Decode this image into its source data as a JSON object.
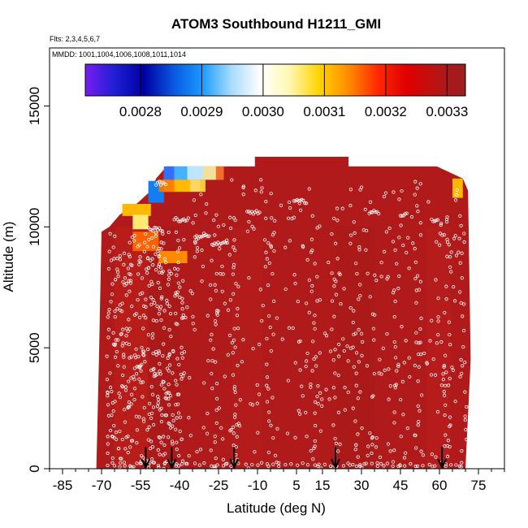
{
  "chart_data": {
    "type": "heatmap",
    "title": "ATOM3 Southbound H1211_GMI",
    "subtitle_lines": [
      "Flts: 2,3,4,5,6,7",
      "MMDD: 1001,1004,1006,1008,1011,1014"
    ],
    "xlabel": "Latitude (deg N)",
    "ylabel": "Altitude (m)",
    "xlim": [
      -90,
      85
    ],
    "ylim": [
      0,
      17400
    ],
    "x_ticks": [
      -85,
      -70,
      -55,
      -40,
      -25,
      -10,
      5,
      15,
      30,
      45,
      60,
      75
    ],
    "x_tick_labels": [
      "-85",
      "-70",
      "-55",
      "-40",
      "-25",
      "-10",
      "5",
      "15",
      "30",
      "45",
      "60",
      "75"
    ],
    "y_ticks": [
      0,
      5000,
      10000,
      15000
    ],
    "y_tick_labels": [
      "0",
      "5000",
      "10000",
      "15000"
    ],
    "colorbar": {
      "min": 0.00271,
      "max": 0.00333,
      "ticks": [
        0.0028,
        0.0029,
        0.003,
        0.0031,
        0.0032,
        0.0033
      ],
      "tick_labels": [
        "0.0028",
        "0.0029",
        "0.0030",
        "0.0031",
        "0.0032",
        "0.0033"
      ],
      "colors": [
        "#7a1cf0",
        "#1f1fd6",
        "#0000a0",
        "#0a55e0",
        "#1a9bff",
        "#a8dcff",
        "#ffffff",
        "#fff7b0",
        "#ffd400",
        "#ff8c00",
        "#ff2800",
        "#e00000",
        "#b81414",
        "#9a1f1f"
      ]
    },
    "background_value": 0.0033,
    "background_color": "#b11a1a",
    "data_extent": {
      "lat_min": -70,
      "lat_max": 72,
      "alt_top_south": 10000,
      "alt_top_mid": 12500,
      "alt_top_max": 12900
    },
    "anomalies": [
      {
        "lat": [
          -46,
          -23
        ],
        "alt": [
          11950,
          12500
        ],
        "value": 0.00295
      },
      {
        "lat": [
          -48,
          -30
        ],
        "alt": [
          11450,
          11950
        ],
        "value": 0.00313
      },
      {
        "lat": [
          -52,
          -46
        ],
        "alt": [
          11000,
          11900
        ],
        "value": 0.00288
      },
      {
        "lat": [
          -62,
          -51
        ],
        "alt": [
          10450,
          10950
        ],
        "value": 0.00311
      },
      {
        "lat": [
          -58,
          -52
        ],
        "alt": [
          9900,
          10500
        ],
        "value": 0.00306
      },
      {
        "lat": [
          -58,
          -48
        ],
        "alt": [
          9000,
          9800
        ],
        "value": 0.00316
      },
      {
        "lat": [
          -48,
          -37
        ],
        "alt": [
          8500,
          9000
        ],
        "value": 0.00314
      },
      {
        "lat": [
          65,
          69
        ],
        "alt": [
          11200,
          12000
        ],
        "value": 0.00311
      }
    ],
    "flight_points": "white open circles along aircraft profiles",
    "arrow_markers_lat": [
      -53,
      -43,
      -19,
      20,
      61
    ]
  }
}
